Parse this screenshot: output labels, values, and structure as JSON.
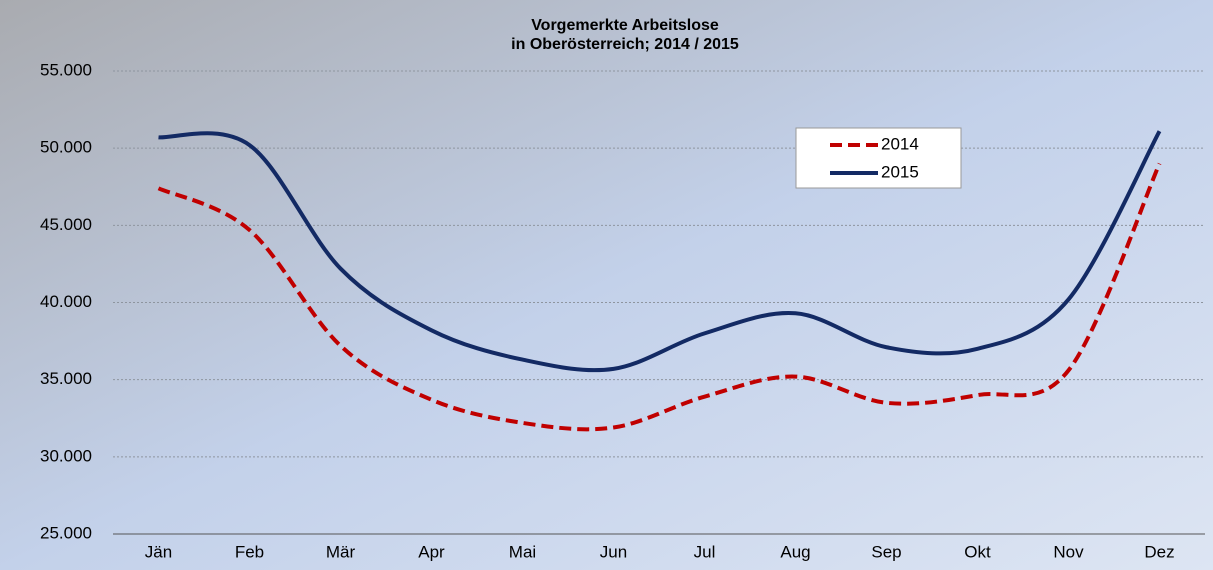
{
  "chart_data": {
    "type": "line",
    "title_lines": [
      "Vorgemerkte Arbeitslose",
      "in Oberösterreich; 2014 / 2015"
    ],
    "categories": [
      "Jän",
      "Feb",
      "Mär",
      "Apr",
      "Mai",
      "Jun",
      "Jul",
      "Aug",
      "Sep",
      "Okt",
      "Nov",
      "Dez"
    ],
    "series": [
      {
        "name": "2014",
        "color": "#c00000",
        "dashed": true,
        "values": [
          47400,
          44700,
          37200,
          33700,
          32200,
          31900,
          33900,
          35200,
          33500,
          34000,
          35600,
          49000
        ]
      },
      {
        "name": "2015",
        "color": "#132a64",
        "dashed": false,
        "values": [
          50700,
          50200,
          42200,
          38200,
          36300,
          35700,
          38000,
          39300,
          37100,
          37000,
          40200,
          51100
        ]
      }
    ],
    "ylim": [
      25000,
      55000
    ],
    "yticks": [
      {
        "value": 25000,
        "label": "25.000"
      },
      {
        "value": 30000,
        "label": "30.000"
      },
      {
        "value": 35000,
        "label": "35.000"
      },
      {
        "value": 40000,
        "label": "40.000"
      },
      {
        "value": 45000,
        "label": "45.000"
      },
      {
        "value": 50000,
        "label": "50.000"
      },
      {
        "value": 55000,
        "label": "55.000"
      }
    ],
    "grid": true,
    "smooth": true
  }
}
